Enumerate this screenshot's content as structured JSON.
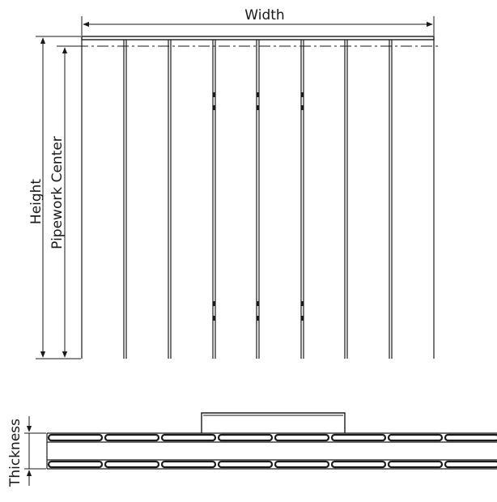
{
  "labels": {
    "width": "Width",
    "height": "Height",
    "pipework_center": "Pipework Center",
    "thickness": "Thickness"
  },
  "colors": {
    "line": "#1a1a1a",
    "background": "#ffffff"
  }
}
